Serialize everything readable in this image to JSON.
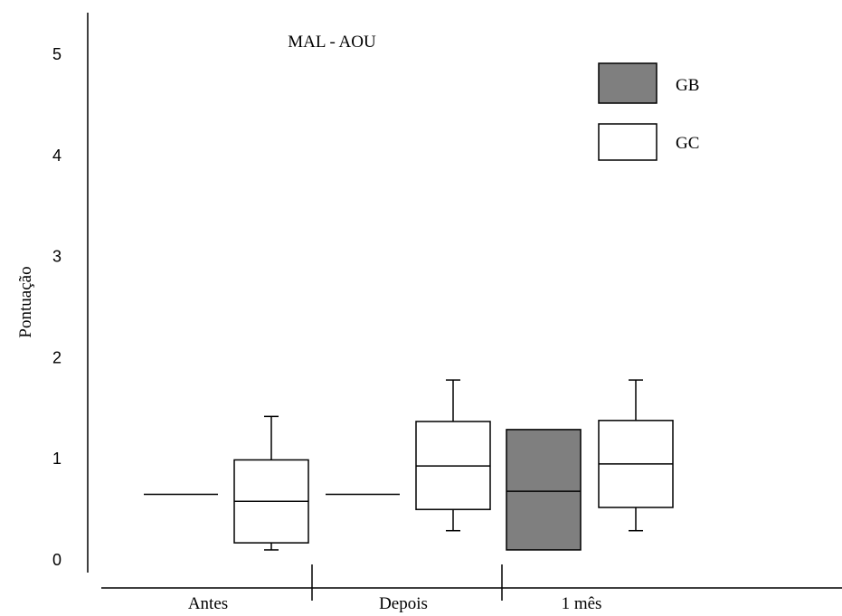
{
  "chart_data": {
    "type": "box",
    "title": "MAL - AOU",
    "xlabel": "",
    "ylabel": "Pontuação",
    "ylim": [
      0,
      5
    ],
    "y_ticks": [
      "0",
      "1",
      "2",
      "3",
      "4",
      "5"
    ],
    "categories": [
      "Antes",
      "Depois",
      "1 mês"
    ],
    "legend": {
      "position": "top-right",
      "entries": [
        {
          "label": "GB",
          "color": "#7f7f7f"
        },
        {
          "label": "GC",
          "color": "#ffffff"
        }
      ]
    },
    "series": [
      {
        "name": "GB",
        "color": "#7f7f7f",
        "boxes": [
          {
            "category": "Antes",
            "min": 0.64,
            "q1": 0.64,
            "median": 0.64,
            "q3": 0.64,
            "max": 0.64
          },
          {
            "category": "Depois",
            "min": 0.64,
            "q1": 0.64,
            "median": 0.64,
            "q3": 0.64,
            "max": 0.64
          },
          {
            "category": "1 mês",
            "min": 0.09,
            "q1": 0.09,
            "median": 0.67,
            "q3": 1.28,
            "max": 1.28
          }
        ]
      },
      {
        "name": "GC",
        "color": "#ffffff",
        "boxes": [
          {
            "category": "Antes",
            "min": 0.09,
            "q1": 0.16,
            "median": 0.57,
            "q3": 0.98,
            "max": 1.41
          },
          {
            "category": "Depois",
            "min": 0.28,
            "q1": 0.49,
            "median": 0.92,
            "q3": 1.36,
            "max": 1.77
          },
          {
            "category": "1 mês",
            "min": 0.28,
            "q1": 0.51,
            "median": 0.94,
            "q3": 1.37,
            "max": 1.77
          }
        ]
      }
    ]
  }
}
